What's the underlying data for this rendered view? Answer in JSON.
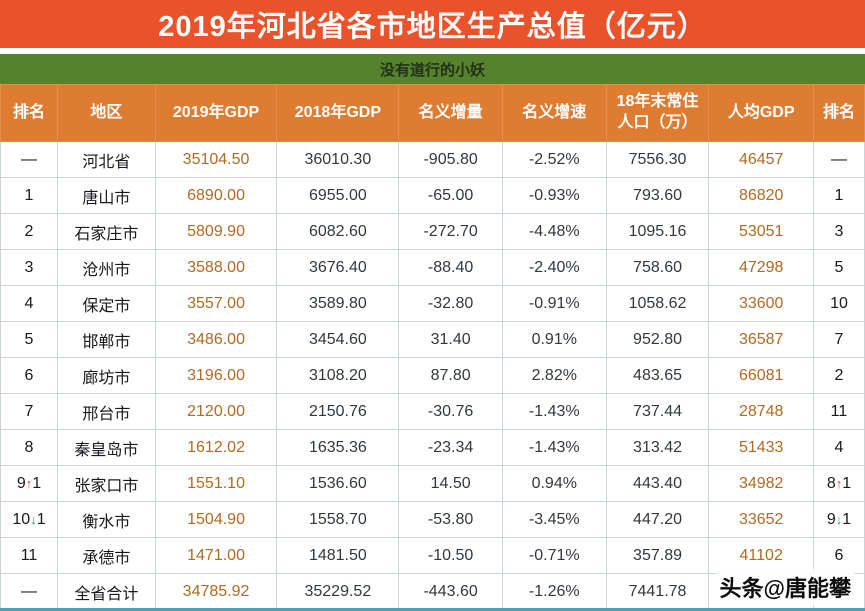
{
  "meta": {
    "title": "2019年河北省各市地区生产总值（亿元）",
    "subtitle": "没有道行的小妖",
    "watermark": "头条@唐能攀"
  },
  "colors": {
    "title_bg": "#e9532b",
    "subtitle_bg": "#56812d",
    "subtitle_text": "#22301a",
    "header_bg": "#de7c31",
    "header_text": "#ffffff",
    "border": "#c9d4da",
    "text_dark": "#33383d",
    "text_black": "#17191c",
    "accent_number": "#b06a22",
    "up_arrow": "#e23b2e",
    "down_arrow": "#2e9e4f",
    "footer_strip": "#4aa3b5"
  },
  "chart_data": {
    "type": "table",
    "title": "2019年河北省各市地区生产总值（亿元）",
    "subtitle": "没有道行的小妖",
    "columns": [
      "排名",
      "地区",
      "2019年GDP",
      "2018年GDP",
      "名义增量",
      "名义增速",
      "18年末常住人口（万）",
      "人均GDP",
      "排名"
    ],
    "rows": [
      [
        "—",
        "河北省",
        "35104.50",
        "36010.30",
        "-905.80",
        "-2.52%",
        "7556.30",
        "46457",
        "—"
      ],
      [
        "1",
        "唐山市",
        "6890.00",
        "6955.00",
        "-65.00",
        "-0.93%",
        "793.60",
        "86820",
        "1"
      ],
      [
        "2",
        "石家庄市",
        "5809.90",
        "6082.60",
        "-272.70",
        "-4.48%",
        "1095.16",
        "53051",
        "3"
      ],
      [
        "3",
        "沧州市",
        "3588.00",
        "3676.40",
        "-88.40",
        "-2.40%",
        "758.60",
        "47298",
        "5"
      ],
      [
        "4",
        "保定市",
        "3557.00",
        "3589.80",
        "-32.80",
        "-0.91%",
        "1058.62",
        "33600",
        "10"
      ],
      [
        "5",
        "邯郸市",
        "3486.00",
        "3454.60",
        "31.40",
        "0.91%",
        "952.80",
        "36587",
        "7"
      ],
      [
        "6",
        "廊坊市",
        "3196.00",
        "3108.20",
        "87.80",
        "2.82%",
        "483.65",
        "66081",
        "2"
      ],
      [
        "7",
        "邢台市",
        "2120.00",
        "2150.76",
        "-30.76",
        "-1.43%",
        "737.44",
        "28748",
        "11"
      ],
      [
        "8",
        "秦皇岛市",
        "1612.02",
        "1635.36",
        "-23.34",
        "-1.43%",
        "313.42",
        "51433",
        "4"
      ],
      [
        "9↑1",
        "张家口市",
        "1551.10",
        "1536.60",
        "14.50",
        "0.94%",
        "443.40",
        "34982",
        "8↑1"
      ],
      [
        "10↓1",
        "衡水市",
        "1504.90",
        "1558.70",
        "-53.80",
        "-3.45%",
        "447.20",
        "33652",
        "9↓1"
      ],
      [
        "11",
        "承德市",
        "1471.00",
        "1481.50",
        "-10.50",
        "-0.71%",
        "357.89",
        "41102",
        "6"
      ],
      [
        "—",
        "全省合计",
        "34785.92",
        "35229.52",
        "-443.60",
        "-1.26%",
        "7441.78",
        "",
        ""
      ]
    ]
  }
}
